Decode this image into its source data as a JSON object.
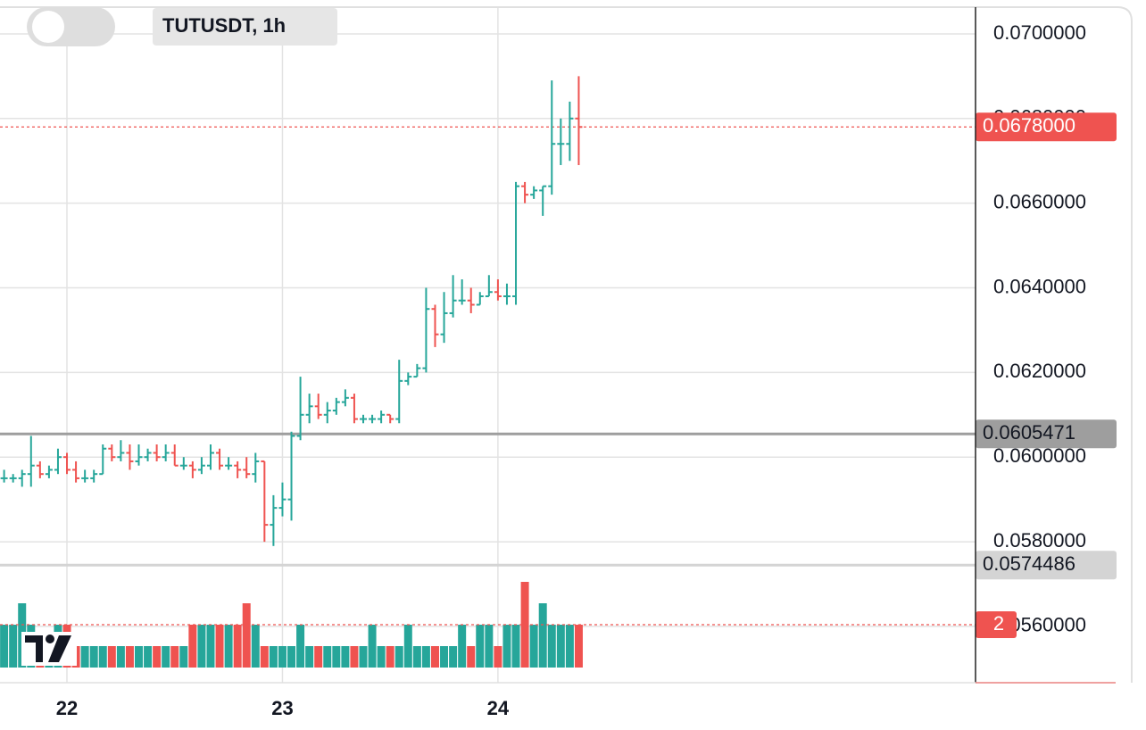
{
  "chart_data": {
    "type": "ohlc",
    "title": "TUTUSDT, 1h",
    "categories": [
      null,
      null,
      null,
      null,
      null,
      null,
      null,
      "22",
      null,
      null,
      null,
      null,
      null,
      null,
      null,
      null,
      null,
      null,
      null,
      null,
      null,
      null,
      null,
      null,
      null,
      null,
      null,
      null,
      null,
      null,
      null,
      "23",
      null,
      null,
      null,
      null,
      null,
      null,
      null,
      null,
      null,
      null,
      null,
      null,
      null,
      null,
      null,
      null,
      null,
      null,
      null,
      null,
      null,
      null,
      null,
      "24",
      null,
      null,
      null,
      null,
      null,
      null,
      null,
      null,
      null
    ],
    "open": [
      0.0595,
      0.0595,
      0.0595,
      0.0596,
      0.0598,
      0.0596,
      0.0597,
      0.06,
      0.0597,
      0.0595,
      0.0595,
      0.0596,
      0.0602,
      0.06,
      0.0601,
      0.0599,
      0.06,
      0.0601,
      0.06,
      0.0601,
      0.0598,
      0.0598,
      0.0597,
      0.0598,
      0.0601,
      0.0598,
      0.0598,
      0.0597,
      0.0596,
      0.0599,
      0.0584,
      0.0588,
      0.059,
      0.0605,
      0.061,
      0.0612,
      0.061,
      0.0611,
      0.0613,
      0.0614,
      0.0609,
      0.0609,
      0.0609,
      0.061,
      0.0609,
      0.0618,
      0.0619,
      0.0621,
      0.0635,
      0.0629,
      0.0634,
      0.0637,
      0.0637,
      0.0636,
      0.0638,
      0.0639,
      0.0638,
      0.0638,
      0.0664,
      0.0662,
      0.0663,
      0.0664,
      0.0674,
      0.0674,
      0.068
    ],
    "high": [
      0.0597,
      0.0596,
      0.0597,
      0.0605,
      0.0599,
      0.0598,
      0.0602,
      0.0601,
      0.0599,
      0.0597,
      0.0597,
      0.0603,
      0.0603,
      0.0604,
      0.0603,
      0.0603,
      0.0602,
      0.0603,
      0.0603,
      0.0603,
      0.06,
      0.0599,
      0.06,
      0.0603,
      0.0602,
      0.06,
      0.0599,
      0.06,
      0.0601,
      0.0599,
      0.0591,
      0.0594,
      0.0606,
      0.0619,
      0.0615,
      0.0615,
      0.0613,
      0.0614,
      0.0616,
      0.0615,
      0.061,
      0.061,
      0.0611,
      0.061,
      0.0623,
      0.062,
      0.0622,
      0.064,
      0.0636,
      0.0639,
      0.0643,
      0.0642,
      0.064,
      0.0639,
      0.0643,
      0.0642,
      0.0641,
      0.0665,
      0.0665,
      0.0664,
      0.0664,
      0.0689,
      0.068,
      0.0684,
      0.069
    ],
    "low": [
      0.0594,
      0.0594,
      0.0593,
      0.0593,
      0.0595,
      0.0595,
      0.0596,
      0.0596,
      0.0594,
      0.0594,
      0.0594,
      0.0596,
      0.0599,
      0.0599,
      0.0597,
      0.0598,
      0.0599,
      0.0599,
      0.0599,
      0.0598,
      0.0597,
      0.0595,
      0.0596,
      0.0597,
      0.0597,
      0.0597,
      0.0595,
      0.0595,
      0.0594,
      0.058,
      0.0579,
      0.0586,
      0.0585,
      0.0604,
      0.0608,
      0.0609,
      0.0608,
      0.061,
      0.0612,
      0.0608,
      0.0608,
      0.0608,
      0.0608,
      0.0608,
      0.0608,
      0.0617,
      0.0619,
      0.062,
      0.0626,
      0.0627,
      0.0633,
      0.0636,
      0.0634,
      0.0636,
      0.0638,
      0.0637,
      0.0636,
      0.0636,
      0.066,
      0.0661,
      0.0657,
      0.0662,
      0.0669,
      0.067,
      0.0669
    ],
    "close": [
      0.0595,
      0.0595,
      0.0596,
      0.0598,
      0.0596,
      0.0597,
      0.06,
      0.0597,
      0.0595,
      0.0595,
      0.0596,
      0.0602,
      0.06,
      0.0601,
      0.0599,
      0.06,
      0.0601,
      0.06,
      0.0601,
      0.0598,
      0.0598,
      0.0597,
      0.0598,
      0.0601,
      0.0598,
      0.0598,
      0.0597,
      0.0596,
      0.0599,
      0.0584,
      0.0588,
      0.059,
      0.0605,
      0.061,
      0.0612,
      0.061,
      0.0611,
      0.0613,
      0.0614,
      0.0609,
      0.0609,
      0.0609,
      0.061,
      0.0609,
      0.0618,
      0.0619,
      0.0621,
      0.0635,
      0.0629,
      0.0634,
      0.0637,
      0.0637,
      0.0636,
      0.0638,
      0.0639,
      0.0638,
      0.0638,
      0.0664,
      0.0662,
      0.0663,
      0.0664,
      0.0674,
      0.0674,
      0.068,
      0.0678
    ],
    "volume": [
      2,
      2,
      3,
      2,
      1,
      1,
      2,
      2,
      1,
      1,
      1,
      1,
      1,
      1,
      1,
      1,
      1,
      1,
      1,
      1,
      1,
      2,
      2,
      2,
      2,
      2,
      2,
      3,
      2,
      1,
      1,
      1,
      1,
      2,
      1,
      1,
      1,
      1,
      1,
      1,
      1,
      2,
      1,
      1,
      1,
      2,
      1,
      1,
      1,
      1,
      1,
      2,
      1,
      2,
      2,
      1,
      2,
      2,
      4,
      2,
      3,
      2,
      2,
      2,
      2
    ],
    "up_color": "#26a69a",
    "down_color": "#ef5350",
    "ylim": [
      0.05467,
      0.0708
    ],
    "yticks": [
      {
        "value": 0.07,
        "label": "0.0700000"
      },
      {
        "value": 0.068,
        "label": "0.0680000"
      },
      {
        "value": 0.066,
        "label": "0.0660000"
      },
      {
        "value": 0.064,
        "label": "0.0640000"
      },
      {
        "value": 0.062,
        "label": "0.0620000"
      },
      {
        "value": 0.06,
        "label": "0.0600000"
      },
      {
        "value": 0.058,
        "label": "0.0580000"
      },
      {
        "value": 0.056,
        "label": "0.0560000"
      }
    ],
    "price_lines": [
      {
        "value": 0.0605471,
        "label": "0.0605471",
        "color": "#9e9e9e"
      },
      {
        "value": 0.0574486,
        "label": "0.0574486",
        "color": "#d4d4d4"
      },
      {
        "value": 0.0678,
        "label": "0.0678000",
        "color": "#ef5350"
      }
    ],
    "grid": true
  }
}
